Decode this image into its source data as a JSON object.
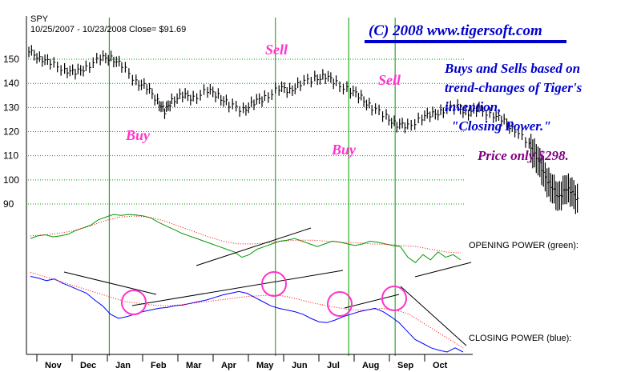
{
  "header": {
    "ticker": "SPY",
    "range_close": "10/25/2007 - 10/23/2008   Close= $91.69",
    "copyright": "(C) 2008 www.tigersoft.com"
  },
  "annotations": {
    "blurb": [
      "Buys and Sells based on",
      "trend-changes of Tiger's",
      "invention,",
      "\"Closing Power.\""
    ],
    "price": "Price only $298.",
    "opening_power_label": "OPENING POWER (green):",
    "closing_power_label": "CLOSING POWER (blue):"
  },
  "colors": {
    "price_bars": "#000000",
    "signal_lines": "#009900",
    "signal_text": "#ff33cc",
    "copyright_text": "#0000cc",
    "blurb_text": "#0000cc",
    "price_text": "#800080",
    "opening_power": "#009900",
    "closing_power": "#0000ff",
    "moving_average": "#ff0000",
    "trendline": "#000000",
    "grid": "#009900"
  },
  "chart_data": {
    "type": "line",
    "title": "SPY",
    "subtitle": "10/25/2007 - 10/23/2008   Close= $91.69",
    "y_ticks": [
      90,
      100,
      110,
      120,
      130,
      140,
      150
    ],
    "ylim": [
      85,
      157
    ],
    "x_months": [
      "Nov",
      "Dec",
      "Jan",
      "Feb",
      "Mar",
      "Apr",
      "May",
      "Jun",
      "Jul",
      "Aug",
      "Sep",
      "Oct"
    ],
    "grid": "horizontal dotted",
    "price_series": {
      "name": "SPY",
      "points": [
        [
          0,
          153
        ],
        [
          0.3,
          151
        ],
        [
          0.6,
          148
        ],
        [
          1,
          146
        ],
        [
          1.3,
          144
        ],
        [
          1.6,
          147
        ],
        [
          2,
          150
        ],
        [
          2.3,
          151
        ],
        [
          2.6,
          147
        ],
        [
          3,
          141
        ],
        [
          3.3,
          138
        ],
        [
          3.6,
          133
        ],
        [
          3.8,
          128
        ],
        [
          4,
          133
        ],
        [
          4.3,
          135
        ],
        [
          4.6,
          134
        ],
        [
          5,
          137
        ],
        [
          5.3,
          135
        ],
        [
          5.6,
          131
        ],
        [
          6,
          129
        ],
        [
          6.3,
          132
        ],
        [
          6.6,
          134
        ],
        [
          7,
          138
        ],
        [
          7.3,
          137
        ],
        [
          7.6,
          140
        ],
        [
          8,
          142
        ],
        [
          8.3,
          143
        ],
        [
          8.6,
          140
        ],
        [
          9,
          137
        ],
        [
          9.3,
          134
        ],
        [
          9.6,
          130
        ],
        [
          10,
          126
        ],
        [
          10.3,
          123
        ],
        [
          10.6,
          122
        ],
        [
          11,
          126
        ],
        [
          11.3,
          127
        ],
        [
          11.6,
          129
        ],
        [
          12,
          130
        ],
        [
          12.3,
          128
        ],
        [
          12.6,
          129
        ],
        [
          13,
          127
        ],
        [
          13.3,
          124
        ],
        [
          13.6,
          121
        ],
        [
          14,
          114
        ],
        [
          14.2,
          110
        ],
        [
          14.4,
          102
        ],
        [
          14.6,
          98
        ],
        [
          14.8,
          92
        ],
        [
          15,
          97
        ],
        [
          15.2,
          94
        ],
        [
          15.4,
          92
        ]
      ]
    },
    "signals": [
      {
        "label": "Buy",
        "month_index": 2.25
      },
      {
        "label": "Sell",
        "month_index": 6.9
      },
      {
        "label": "Buy",
        "month_index": 8.95
      },
      {
        "label": "Sell",
        "month_index": 10.25
      }
    ],
    "opening_power": {
      "name": "OPENING POWER (green)",
      "values": [
        0.55,
        0.6,
        0.62,
        0.58,
        0.6,
        0.63,
        0.7,
        0.75,
        0.8,
        0.9,
        0.95,
        1.0,
        0.98,
        1.0,
        0.99,
        0.97,
        0.93,
        0.85,
        0.78,
        0.72,
        0.65,
        0.6,
        0.55,
        0.5,
        0.45,
        0.4,
        0.35,
        0.3,
        0.2,
        0.25,
        0.35,
        0.4,
        0.45,
        0.5,
        0.52,
        0.55,
        0.5,
        0.45,
        0.4,
        0.45,
        0.5,
        0.48,
        0.45,
        0.42,
        0.45,
        0.5,
        0.48,
        0.45,
        0.42,
        0.4,
        0.2,
        0.1,
        0.25,
        0.15,
        0.3,
        0.2,
        0.25,
        0.15
      ],
      "ma": [
        0.6,
        0.62,
        0.65,
        0.7,
        0.78,
        0.88,
        0.95,
        0.97,
        0.95,
        0.88,
        0.78,
        0.68,
        0.58,
        0.5,
        0.45,
        0.45,
        0.47,
        0.5,
        0.52,
        0.52,
        0.5,
        0.48,
        0.47,
        0.45,
        0.44,
        0.42,
        0.4,
        0.35,
        0.3,
        0.28
      ]
    },
    "closing_power": {
      "name": "CLOSING POWER (blue)",
      "values": [
        0.9,
        0.88,
        0.85,
        0.87,
        0.82,
        0.78,
        0.74,
        0.7,
        0.62,
        0.55,
        0.45,
        0.4,
        0.42,
        0.45,
        0.48,
        0.5,
        0.52,
        0.53,
        0.55,
        0.56,
        0.58,
        0.6,
        0.62,
        0.65,
        0.68,
        0.7,
        0.72,
        0.7,
        0.65,
        0.6,
        0.55,
        0.52,
        0.5,
        0.48,
        0.45,
        0.4,
        0.36,
        0.35,
        0.38,
        0.42,
        0.45,
        0.48,
        0.5,
        0.52,
        0.48,
        0.42,
        0.35,
        0.25,
        0.15,
        0.1,
        0.05,
        0.02,
        0.0,
        0.05,
        0.0
      ],
      "ma": [
        0.95,
        0.9,
        0.85,
        0.8,
        0.75,
        0.7,
        0.65,
        0.6,
        0.58,
        0.56,
        0.55,
        0.56,
        0.58,
        0.6,
        0.62,
        0.64,
        0.66,
        0.67,
        0.68,
        0.66,
        0.62,
        0.58,
        0.55,
        0.52,
        0.5,
        0.5,
        0.52,
        0.5,
        0.45,
        0.35,
        0.25,
        0.15,
        0.05
      ]
    }
  }
}
